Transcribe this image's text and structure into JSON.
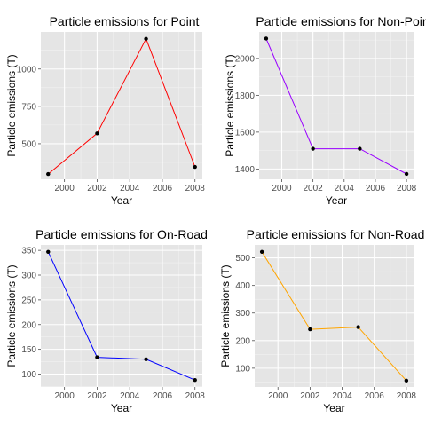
{
  "chart_data": [
    {
      "type": "line",
      "title": "Particle emissions for Point",
      "xlabel": "Year",
      "ylabel": "Particle emissions (T)",
      "x": [
        1999,
        2002,
        2005,
        2008
      ],
      "xlim": [
        1998.55,
        2008.45
      ],
      "xticks": [
        2000,
        2002,
        2004,
        2006,
        2008
      ],
      "ylim": [
        262,
        1248
      ],
      "yticks": [
        500,
        750,
        1000
      ],
      "series": [
        {
          "values": [
            297,
            569,
            1202,
            345
          ],
          "color": "#ff0000"
        }
      ],
      "grid": true,
      "legend": "none"
    },
    {
      "type": "line",
      "title": "Particle emissions for Non-Point",
      "xlabel": "Year",
      "ylabel": "Particle emissions (T)",
      "x": [
        1999,
        2002,
        2005,
        2008
      ],
      "xlim": [
        1998.55,
        2008.45
      ],
      "xticks": [
        2000,
        2002,
        2004,
        2006,
        2008
      ],
      "ylim": [
        1344,
        2144
      ],
      "yticks": [
        1400,
        1600,
        1800,
        2000
      ],
      "series": [
        {
          "values": [
            2108,
            1510,
            1510,
            1373
          ],
          "color": "#9900ff"
        }
      ],
      "grid": true,
      "legend": "none"
    },
    {
      "type": "line",
      "title": "Particle emissions for On-Road",
      "xlabel": "Year",
      "ylabel": "Particle emissions (T)",
      "x": [
        1999,
        2002,
        2005,
        2008
      ],
      "xlim": [
        1998.55,
        2008.45
      ],
      "xticks": [
        2000,
        2002,
        2004,
        2006,
        2008
      ],
      "ylim": [
        74,
        361
      ],
      "yticks": [
        100,
        150,
        200,
        250,
        300,
        350
      ],
      "series": [
        {
          "values": [
            347,
            134,
            130,
            88
          ],
          "color": "#0000ff"
        }
      ],
      "grid": true,
      "legend": "none"
    },
    {
      "type": "line",
      "title": "Particle emissions for Non-Road",
      "xlabel": "Year",
      "ylabel": "Particle emissions (T)",
      "x": [
        1999,
        2002,
        2005,
        2008
      ],
      "xlim": [
        1998.55,
        2008.45
      ],
      "xticks": [
        2000,
        2002,
        2004,
        2006,
        2008
      ],
      "ylim": [
        32,
        547
      ],
      "yticks": [
        100,
        200,
        300,
        400,
        500
      ],
      "series": [
        {
          "values": [
            522,
            241,
            249,
            55
          ],
          "color": "#ffa500"
        }
      ],
      "grid": true,
      "legend": "none"
    }
  ]
}
